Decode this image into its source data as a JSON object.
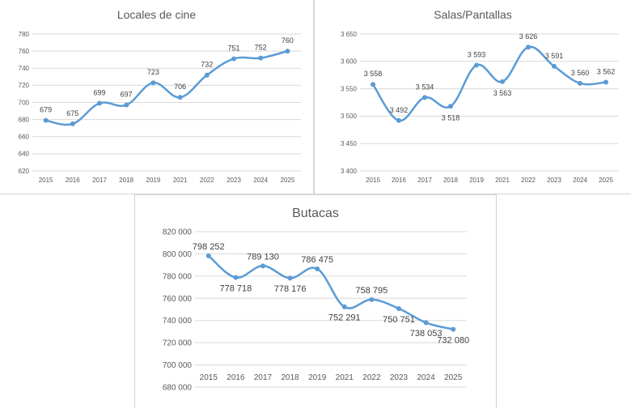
{
  "chart_data": [
    {
      "type": "line",
      "title": "Locales de cine",
      "categories": [
        "2015",
        "2016",
        "2017",
        "2018",
        "2019",
        "2021",
        "2022",
        "2023",
        "2024",
        "2025"
      ],
      "series": [
        {
          "values": [
            679,
            675,
            699,
            697,
            723,
            706,
            732,
            751,
            752,
            760
          ]
        }
      ],
      "value_labels": [
        "679",
        "675",
        "699",
        "697",
        "723",
        "706",
        "732",
        "751",
        "752",
        "760"
      ],
      "ylim": [
        620,
        780
      ],
      "yticks": [
        620,
        640,
        660,
        680,
        700,
        720,
        740,
        760,
        780
      ],
      "ytick_labels": [
        "620",
        "640",
        "660",
        "680",
        "700",
        "720",
        "740",
        "760",
        "780"
      ],
      "label_pos": [
        "above",
        "above",
        "above",
        "above",
        "above",
        "above",
        "above",
        "above",
        "above",
        "above"
      ],
      "grid": true,
      "color": "#5b9bd5"
    },
    {
      "type": "line",
      "title": "Salas/Pantallas",
      "categories": [
        "2015",
        "2016",
        "2017",
        "2018",
        "2019",
        "2021",
        "2022",
        "2023",
        "2024",
        "2025"
      ],
      "series": [
        {
          "values": [
            3558,
            3492,
            3534,
            3518,
            3593,
            3563,
            3626,
            3591,
            3560,
            3562
          ]
        }
      ],
      "value_labels": [
        "3 558",
        "3 492",
        "3 534",
        "3 518",
        "3 593",
        "3 563",
        "3 626",
        "3 591",
        "3 560",
        "3 562"
      ],
      "ylim": [
        3400,
        3650
      ],
      "yticks": [
        3400,
        3450,
        3500,
        3550,
        3600,
        3650
      ],
      "ytick_labels": [
        "3 400",
        "3 450",
        "3 500",
        "3 550",
        "3 600",
        "3 650"
      ],
      "label_pos": [
        "above",
        "above",
        "above",
        "below",
        "above",
        "below",
        "above",
        "above",
        "above",
        "above"
      ],
      "grid": true,
      "color": "#5b9bd5"
    },
    {
      "type": "line",
      "title": "Butacas",
      "categories": [
        "2015",
        "2016",
        "2017",
        "2018",
        "2019",
        "2021",
        "2022",
        "2023",
        "2024",
        "2025"
      ],
      "series": [
        {
          "values": [
            798252,
            778718,
            789130,
            778176,
            786475,
            752291,
            758795,
            750751,
            738053,
            732080
          ]
        }
      ],
      "value_labels": [
        "798 252",
        "778 718",
        "789 130",
        "778 176",
        "786 475",
        "752 291",
        "758 795",
        "750 751",
        "738 053",
        "732 080"
      ],
      "ylim": [
        680000,
        820000
      ],
      "yticks": [
        680000,
        700000,
        720000,
        740000,
        760000,
        780000,
        800000,
        820000
      ],
      "ytick_labels": [
        "680 000",
        "700 000",
        "720 000",
        "740 000",
        "760 000",
        "780 000",
        "800 000",
        "820 000"
      ],
      "label_pos": [
        "above",
        "below",
        "above",
        "below",
        "above",
        "below",
        "above",
        "below",
        "below",
        "below"
      ],
      "grid": true,
      "color": "#5b9bd5"
    }
  ]
}
